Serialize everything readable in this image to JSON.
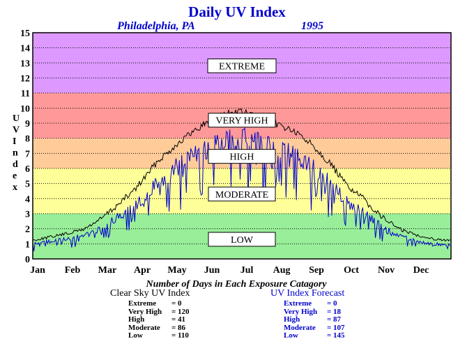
{
  "chart_data": {
    "type": "line",
    "title": "Daily UV Index",
    "subtitle_location": "Philadelphia, PA",
    "subtitle_year": "1995",
    "ylabel": "UV Index",
    "xlabel": "",
    "ylim": [
      0,
      15
    ],
    "yticks": [
      "0",
      "1",
      "2",
      "3",
      "4",
      "5",
      "6",
      "7",
      "8",
      "9",
      "10",
      "11",
      "12",
      "13",
      "14",
      "15"
    ],
    "months": [
      "Jan",
      "Feb",
      "Mar",
      "Apr",
      "May",
      "Jun",
      "Jul",
      "Aug",
      "Sep",
      "Oct",
      "Nov",
      "Dec"
    ],
    "grid": true,
    "bands": [
      {
        "label": "LOW",
        "from": 0,
        "to": 3,
        "color": "#99ee99",
        "label_y": 1.3
      },
      {
        "label": "MODERATE",
        "from": 3,
        "to": 6,
        "color": "#ffff99",
        "label_y": 4.3
      },
      {
        "label": "HIGH",
        "from": 6,
        "to": 8,
        "color": "#ffcc99",
        "label_y": 6.8
      },
      {
        "label": "VERY HIGH",
        "from": 8,
        "to": 11,
        "color": "#ff9999",
        "label_y": 9.2
      },
      {
        "label": "EXTREME",
        "from": 11,
        "to": 15,
        "color": "#dd99ff",
        "label_y": 12.8
      }
    ],
    "series": [
      {
        "key": "clear",
        "color": "#000000",
        "envelope_days": [
          0,
          31,
          45,
          59,
          70,
          90,
          110,
          130,
          150,
          170,
          181,
          195,
          212,
          225,
          243,
          260,
          273,
          290,
          304,
          320,
          334,
          350,
          364
        ],
        "envelope_values": [
          1.3,
          1.8,
          2.1,
          2.8,
          3.5,
          4.9,
          6.8,
          8.1,
          9.2,
          9.9,
          10.0,
          9.7,
          9.2,
          8.8,
          7.9,
          6.5,
          5.2,
          4.1,
          3.0,
          2.1,
          1.7,
          1.4,
          1.3
        ]
      },
      {
        "key": "forecast",
        "color": "#0000cc",
        "envelope_days": [
          0,
          31,
          45,
          59,
          70,
          90,
          110,
          130,
          150,
          170,
          181,
          195,
          212,
          225,
          243,
          260,
          273,
          290,
          304,
          320,
          334,
          350,
          364
        ],
        "envelope_values": [
          1.1,
          1.5,
          1.7,
          2.2,
          2.8,
          4.0,
          5.8,
          7.0,
          8.0,
          8.6,
          8.8,
          8.5,
          8.1,
          7.7,
          6.8,
          5.5,
          4.3,
          3.3,
          2.4,
          1.7,
          1.3,
          1.1,
          1.0
        ]
      }
    ],
    "stats_title": "Number of Days in Each Exposure Catagory",
    "clear_sky": {
      "title": "Clear Sky UV Index",
      "rows": [
        {
          "label": "Extreme",
          "sep": "=",
          "value": "0"
        },
        {
          "label": "Very High",
          "sep": "=",
          "value": "120"
        },
        {
          "label": "High",
          "sep": "=",
          "value": "41"
        },
        {
          "label": "Moderate",
          "sep": "=",
          "value": "86"
        },
        {
          "label": "Low",
          "sep": "=",
          "value": "110"
        }
      ]
    },
    "forecast": {
      "title": "UV Index Forecast",
      "rows": [
        {
          "label": "Extreme",
          "sep": "=",
          "value": "0"
        },
        {
          "label": "Very High",
          "sep": "=",
          "value": "18"
        },
        {
          "label": "High",
          "sep": "=",
          "value": "87"
        },
        {
          "label": "Moderate",
          "sep": "=",
          "value": "107"
        },
        {
          "label": "Low",
          "sep": "=",
          "value": "145"
        }
      ]
    }
  }
}
